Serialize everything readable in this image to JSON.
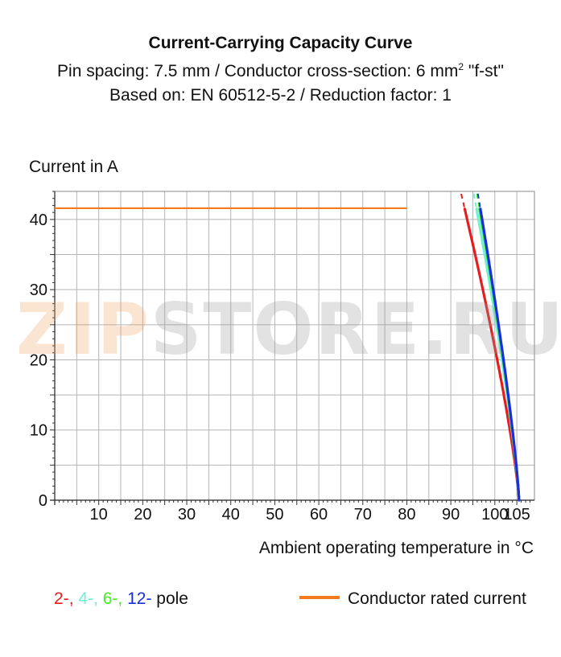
{
  "header": {
    "title": "Current-Carrying Capacity Curve",
    "subtitle_line1_pre": "Pin spacing: 7.5 mm / Conductor cross-section: 6 mm",
    "subtitle_line1_sup": "2",
    "subtitle_line1_post": " \"f-st\"",
    "subtitle_line2": "Based on: EN 60512-5-2 / Reduction factor: 1"
  },
  "watermark": {
    "part1": "ZIP",
    "part2": "STORE.RU"
  },
  "legend": {
    "pole_items": [
      {
        "text": "2-",
        "color": "#e41e1e"
      },
      {
        "text": ",",
        "color": "#e41e1e"
      },
      {
        "text": " 4-",
        "color": "#70f0d0"
      },
      {
        "text": ",",
        "color": "#70f0d0"
      },
      {
        "text": " 6-",
        "color": "#44ee22"
      },
      {
        "text": ",",
        "color": "#44ee22"
      },
      {
        "text": " 12-",
        "color": "#1a2ee0"
      },
      {
        "text": " pole",
        "color": "#111111"
      }
    ],
    "rated_label": "Conductor rated current"
  },
  "chart_data": {
    "type": "line",
    "title": "Current-Carrying Capacity Curve",
    "xlabel": "Ambient operating temperature in °C",
    "ylabel": "Current in A",
    "xlim": [
      0,
      109
    ],
    "ylim": [
      0,
      44
    ],
    "x_ticks": [
      10,
      20,
      30,
      40,
      50,
      60,
      70,
      80,
      90,
      100,
      105
    ],
    "y_ticks": [
      0,
      10,
      20,
      30,
      40
    ],
    "grid": true,
    "rated_current": {
      "name": "Conductor rated current",
      "value": 41.6,
      "x": [
        0,
        80
      ],
      "color": "#f47a20"
    },
    "series": [
      {
        "name": "2-",
        "color": "#e41e1e",
        "tmax": 105.5,
        "a": 5.56,
        "p": 0.8,
        "dashed_above": 41.6
      },
      {
        "name": "4-",
        "color": "#70f0d0",
        "tmax": 105.5,
        "a": 6.77,
        "p": 0.8,
        "dashed_above": 41.6
      },
      {
        "name": "6-",
        "color": "#44ee22",
        "tmax": 105.5,
        "a": 7.17,
        "p": 0.8,
        "dashed_above": 41.6
      },
      {
        "name": "12-",
        "color": "#1a2ee0",
        "tmax": 105.5,
        "a": 7.3,
        "p": 0.8,
        "dashed_above": 41.6
      }
    ]
  }
}
